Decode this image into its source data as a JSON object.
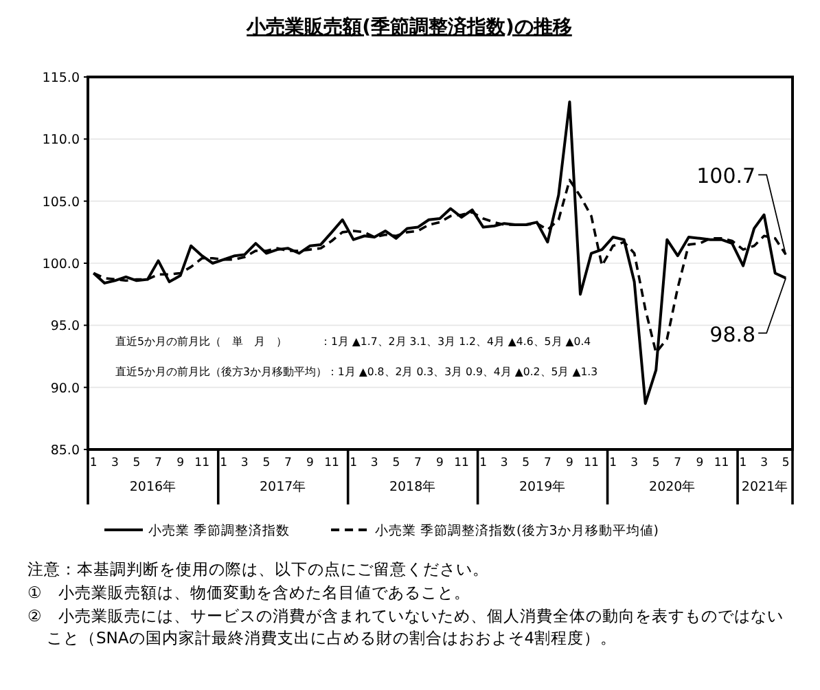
{
  "chart_data": {
    "type": "line",
    "title": "小売業販売額(季節調整済指数)の推移",
    "x": [
      "2016-01",
      "2016-02",
      "2016-03",
      "2016-04",
      "2016-05",
      "2016-06",
      "2016-07",
      "2016-08",
      "2016-09",
      "2016-10",
      "2016-11",
      "2016-12",
      "2017-01",
      "2017-02",
      "2017-03",
      "2017-04",
      "2017-05",
      "2017-06",
      "2017-07",
      "2017-08",
      "2017-09",
      "2017-10",
      "2017-11",
      "2017-12",
      "2018-01",
      "2018-02",
      "2018-03",
      "2018-04",
      "2018-05",
      "2018-06",
      "2018-07",
      "2018-08",
      "2018-09",
      "2018-10",
      "2018-11",
      "2018-12",
      "2019-01",
      "2019-02",
      "2019-03",
      "2019-04",
      "2019-05",
      "2019-06",
      "2019-07",
      "2019-08",
      "2019-09",
      "2019-10",
      "2019-11",
      "2019-12",
      "2020-01",
      "2020-02",
      "2020-03",
      "2020-04",
      "2020-05",
      "2020-06",
      "2020-07",
      "2020-08",
      "2020-09",
      "2020-10",
      "2020-11",
      "2020-12",
      "2021-01",
      "2021-02",
      "2021-03",
      "2021-04",
      "2021-05"
    ],
    "series": [
      {
        "name": "小売業 季節調整済指数",
        "color": "#000000",
        "line_style": "solid",
        "values": [
          99.2,
          98.4,
          98.6,
          98.9,
          98.6,
          98.7,
          100.2,
          98.5,
          99.0,
          101.4,
          100.6,
          100.0,
          100.3,
          100.6,
          100.7,
          101.6,
          100.8,
          101.1,
          101.2,
          100.8,
          101.4,
          101.5,
          102.5,
          103.5,
          101.9,
          102.2,
          102.1,
          102.6,
          102.0,
          102.8,
          102.9,
          103.5,
          103.6,
          104.4,
          103.7,
          104.3,
          102.9,
          103.0,
          103.2,
          103.1,
          103.1,
          103.3,
          101.7,
          105.5,
          113.0,
          97.5,
          100.8,
          101.1,
          102.1,
          101.9,
          98.5,
          88.7,
          91.4,
          101.9,
          100.6,
          102.1,
          102.0,
          101.9,
          101.9,
          101.6,
          99.8,
          102.8,
          103.9,
          99.2,
          98.8
        ]
      },
      {
        "name": "小売業 季節調整済指数(後方3か月移動平均値)",
        "color": "#000000",
        "line_style": "dashed",
        "values": [
          99.2,
          98.8,
          98.7,
          98.6,
          98.7,
          98.7,
          99.1,
          99.1,
          99.2,
          99.7,
          100.4,
          100.4,
          100.3,
          100.3,
          100.5,
          101.0,
          101.0,
          101.2,
          101.0,
          101.0,
          101.1,
          101.2,
          101.8,
          102.5,
          102.6,
          102.5,
          102.1,
          102.3,
          102.2,
          102.5,
          102.6,
          103.1,
          103.3,
          103.8,
          103.9,
          104.1,
          103.6,
          103.3,
          103.1,
          103.1,
          103.1,
          103.2,
          102.7,
          103.5,
          106.7,
          105.4,
          103.8,
          99.8,
          101.4,
          101.7,
          100.8,
          96.3,
          92.8,
          93.9,
          98.0,
          101.5,
          101.6,
          102.0,
          102.0,
          101.8,
          101.1,
          101.4,
          102.2,
          102.0,
          100.7
        ]
      }
    ],
    "xlim": [
      "2015-12-16",
      "2021-05-20"
    ],
    "xticks": [
      {
        "value": "2016-01",
        "label": "1"
      },
      {
        "value": "2016-03",
        "label": "3"
      },
      {
        "value": "2016-05",
        "label": "5"
      },
      {
        "value": "2016-07",
        "label": "7"
      },
      {
        "value": "2016-09",
        "label": "9"
      },
      {
        "value": "2016-11",
        "label": "11"
      },
      {
        "value": "2017-01",
        "label": "1"
      },
      {
        "value": "2017-03",
        "label": "3"
      },
      {
        "value": "2017-05",
        "label": "5"
      },
      {
        "value": "2017-07",
        "label": "7"
      },
      {
        "value": "2017-09",
        "label": "9"
      },
      {
        "value": "2017-11",
        "label": "11"
      },
      {
        "value": "2018-01",
        "label": "1"
      },
      {
        "value": "2018-03",
        "label": "3"
      },
      {
        "value": "2018-05",
        "label": "5"
      },
      {
        "value": "2018-07",
        "label": "7"
      },
      {
        "value": "2018-09",
        "label": "9"
      },
      {
        "value": "2018-11",
        "label": "11"
      },
      {
        "value": "2019-01",
        "label": "1"
      },
      {
        "value": "2019-03",
        "label": "3"
      },
      {
        "value": "2019-05",
        "label": "5"
      },
      {
        "value": "2019-07",
        "label": "7"
      },
      {
        "value": "2019-09",
        "label": "9"
      },
      {
        "value": "2019-11",
        "label": "11"
      },
      {
        "value": "2020-01",
        "label": "1"
      },
      {
        "value": "2020-03",
        "label": "3"
      },
      {
        "value": "2020-05",
        "label": "5"
      },
      {
        "value": "2020-07",
        "label": "7"
      },
      {
        "value": "2020-09",
        "label": "9"
      },
      {
        "value": "2020-11",
        "label": "11"
      },
      {
        "value": "2021-01",
        "label": "1"
      },
      {
        "value": "2021-03",
        "label": "3"
      },
      {
        "value": "2021-05",
        "label": "5"
      }
    ],
    "ylim": [
      85,
      115
    ],
    "yticks": [
      {
        "value": 85,
        "label": "85.0"
      },
      {
        "value": 90,
        "label": "90.0"
      },
      {
        "value": 95,
        "label": "95.0"
      },
      {
        "value": 100,
        "label": "100.0"
      },
      {
        "value": 105,
        "label": "105.0"
      },
      {
        "value": 110,
        "label": "110.0"
      },
      {
        "value": 115,
        "label": "115.0"
      }
    ],
    "grid": "y",
    "legend": "bottom",
    "annotations": [
      "2016年",
      "2017年",
      "2018年",
      "2019年",
      "2020年",
      "2021年",
      {
        "text": "100.7",
        "x": "2021-05",
        "y": 100.7
      },
      {
        "text": "98.8",
        "x": "2021-05",
        "y": 98.8
      },
      "直近5か月の前月比（　単　月　）　　　：1月 ▲1.7、2月 3.1、3月 1.2、4月 ▲4.6、5月 ▲0.4",
      "直近5か月の前月比（後方3か月移動平均）：1月 ▲0.8、2月 0.3、3月 0.9、4月 ▲0.2、5月 ▲1.3",
      "注意：本基調判断を使用の際は、以下の点にご留意ください。",
      "①　小売業販売額は、物価変動を含めた名目値であること。",
      "②　小売業販売には、サービスの消費が含まれていないため、個人消費全体の動向を表すものではないこと（SNAの国内家計最終消費支出に占める財の割合はおおよそ4割程度）。"
    ]
  }
}
